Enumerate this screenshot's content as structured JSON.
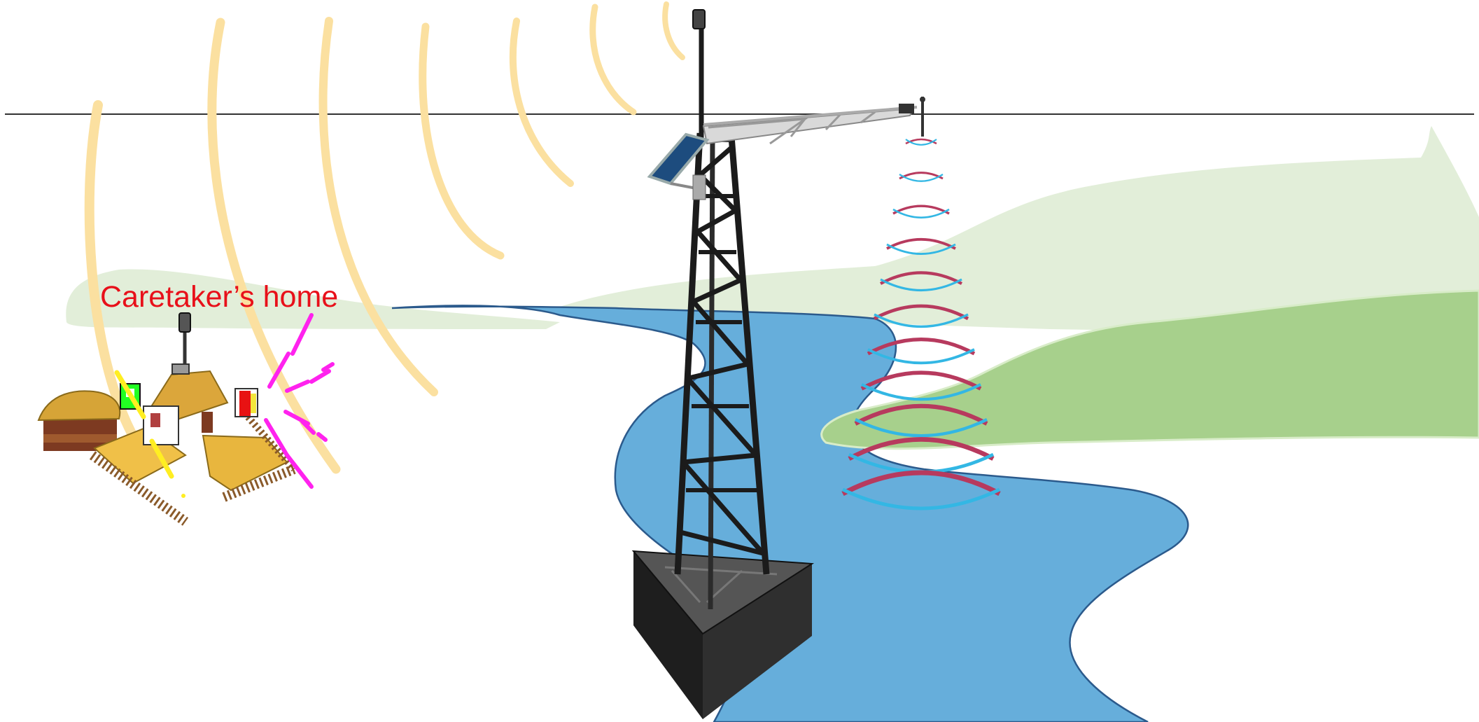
{
  "labels": {
    "caretaker_home": "Caretaker’s home"
  },
  "colors": {
    "caption": "#e8101a",
    "river": "#66aedb",
    "river_edge": "#2b5a8c",
    "hill_light": "#e2eed9",
    "hill_dark": "#a7d08c",
    "radio_wave": "#fbe0a0",
    "radar_wave_red": "#b73a5e",
    "radar_wave_blue": "#33b7e4",
    "tower": "#222222",
    "base": "#2e2e2e",
    "alarm_signal": "#ff22ee"
  },
  "icons": {
    "tower": "lattice-tower-icon",
    "solar_panel": "solar-panel-icon",
    "radar_sensor": "radar-sensor-icon",
    "house": "village-house-icon",
    "alarm": "alarm-light-icon"
  }
}
